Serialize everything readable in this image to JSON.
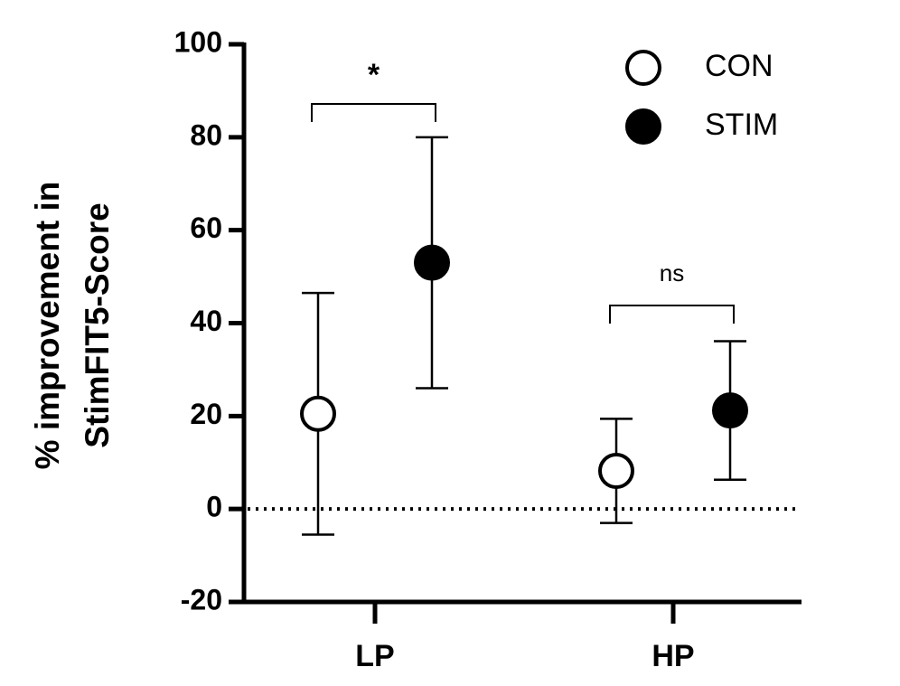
{
  "chart_data": {
    "type": "scatter",
    "ylabel": [
      "% improvement in",
      "StimFIT5-Score"
    ],
    "categories": [
      "LP",
      "HP"
    ],
    "series": [
      {
        "name": "CON",
        "color": "#000000",
        "filled": false,
        "values": [
          20.5,
          8.2
        ],
        "errors": [
          26,
          11.2
        ]
      },
      {
        "name": "STIM",
        "color": "#000000",
        "filled": true,
        "values": [
          53,
          21.2
        ],
        "errors": [
          27,
          14.9
        ]
      }
    ],
    "annotations": [
      "*",
      "ns"
    ],
    "hline": 0,
    "ylim": [
      -20,
      100
    ],
    "yticks": [
      -20,
      0,
      20,
      40,
      60,
      80,
      100
    ],
    "legend": "upper right"
  }
}
